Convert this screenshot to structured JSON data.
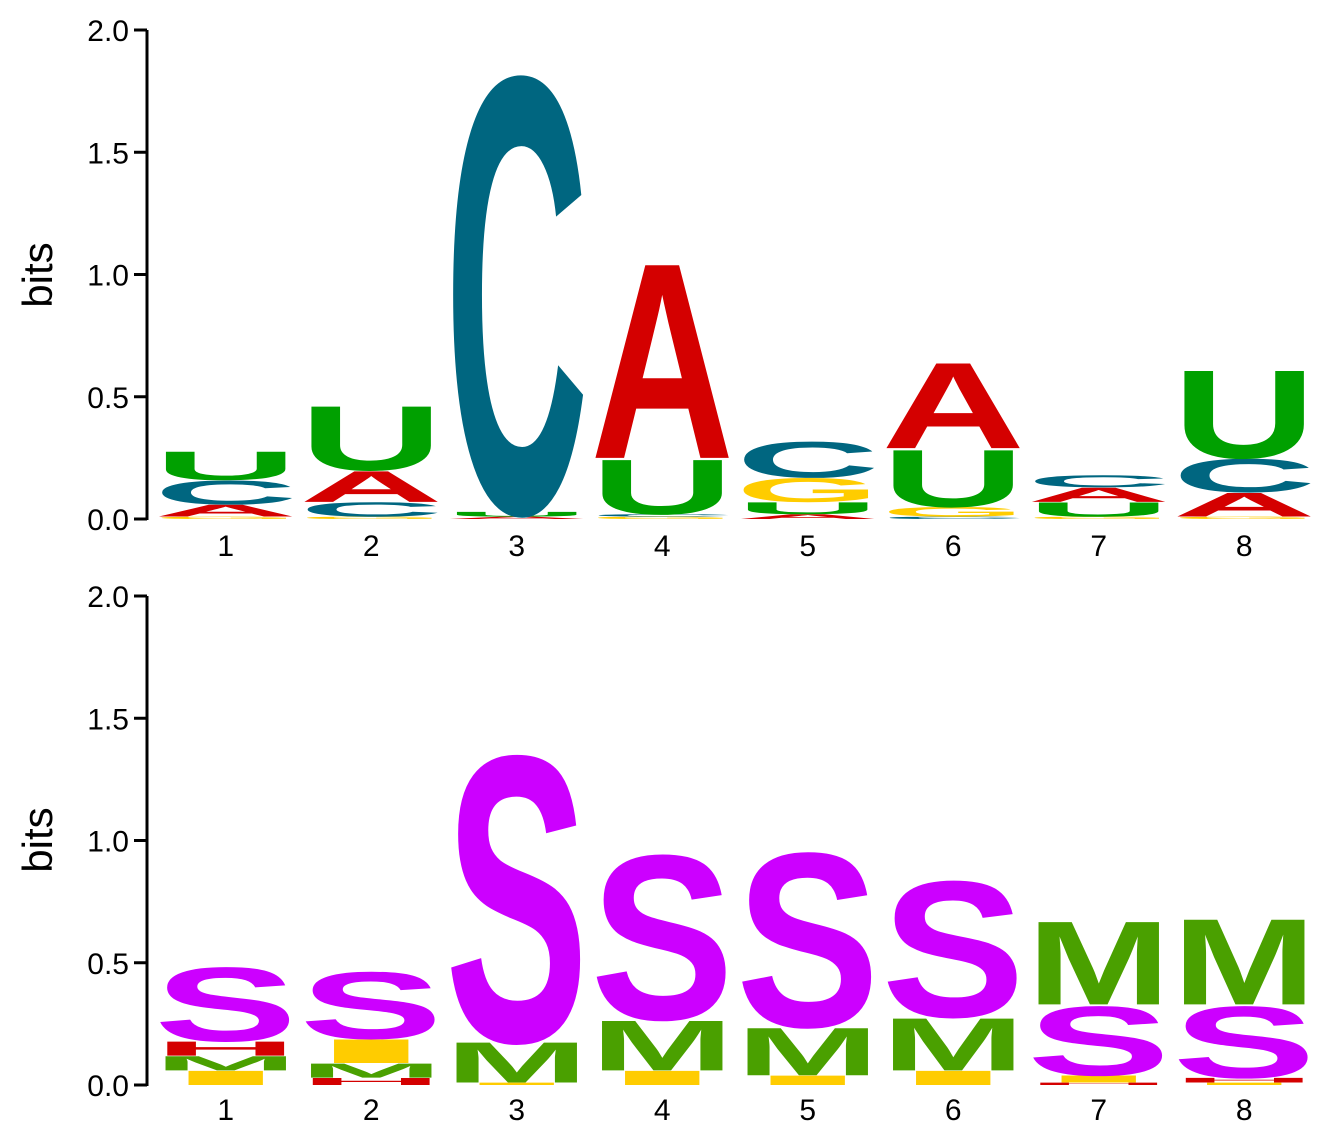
{
  "chart_data": [
    {
      "type": "sequence-logo",
      "ylabel": "bits",
      "ylim": [
        0,
        2.0
      ],
      "yticks": [
        "0.0",
        "0.5",
        "1.0",
        "1.5",
        "2.0"
      ],
      "xticks": [
        "1",
        "2",
        "3",
        "4",
        "5",
        "6",
        "7",
        "8"
      ],
      "colors": {
        "A": "#d40000",
        "C": "#006680",
        "G": "#ffcc00",
        "U": "#00a000"
      },
      "positions": [
        [
          {
            "letter": "G",
            "bits": 0.01
          },
          {
            "letter": "A",
            "bits": 0.05
          },
          {
            "letter": "C",
            "bits": 0.1
          },
          {
            "letter": "U",
            "bits": 0.12
          }
        ],
        [
          {
            "letter": "G",
            "bits": 0.01
          },
          {
            "letter": "C",
            "bits": 0.06
          },
          {
            "letter": "A",
            "bits": 0.13
          },
          {
            "letter": "U",
            "bits": 0.27
          }
        ],
        [
          {
            "letter": "A",
            "bits": 0.01
          },
          {
            "letter": "U",
            "bits": 0.02
          },
          {
            "letter": "C",
            "bits": 1.83
          }
        ],
        [
          {
            "letter": "G",
            "bits": 0.01
          },
          {
            "letter": "C",
            "bits": 0.01
          },
          {
            "letter": "U",
            "bits": 0.23
          },
          {
            "letter": "A",
            "bits": 0.82
          }
        ],
        [
          {
            "letter": "A",
            "bits": 0.02
          },
          {
            "letter": "U",
            "bits": 0.05
          },
          {
            "letter": "G",
            "bits": 0.1
          },
          {
            "letter": "C",
            "bits": 0.15
          }
        ],
        [
          {
            "letter": "C",
            "bits": 0.01
          },
          {
            "letter": "G",
            "bits": 0.04
          },
          {
            "letter": "U",
            "bits": 0.24
          },
          {
            "letter": "A",
            "bits": 0.36
          }
        ],
        [
          {
            "letter": "G",
            "bits": 0.01
          },
          {
            "letter": "U",
            "bits": 0.06
          },
          {
            "letter": "A",
            "bits": 0.06
          },
          {
            "letter": "C",
            "bits": 0.05
          }
        ],
        [
          {
            "letter": "G",
            "bits": 0.01
          },
          {
            "letter": "A",
            "bits": 0.1
          },
          {
            "letter": "C",
            "bits": 0.14
          },
          {
            "letter": "U",
            "bits": 0.37
          }
        ]
      ]
    },
    {
      "type": "sequence-logo",
      "ylabel": "bits",
      "ylim": [
        0,
        2.0
      ],
      "yticks": [
        "0.0",
        "0.5",
        "1.0",
        "1.5",
        "2.0"
      ],
      "xticks": [
        "1",
        "2",
        "3",
        "4",
        "5",
        "6",
        "7",
        "8"
      ],
      "colors": {
        "S": "#cc00ff",
        "M": "#4aa000",
        "H": "#d40000",
        "I": "#ffcc00"
      },
      "positions": [
        [
          {
            "letter": "I",
            "bits": 0.06
          },
          {
            "letter": "M",
            "bits": 0.06
          },
          {
            "letter": "H",
            "bits": 0.06
          },
          {
            "letter": "S",
            "bits": 0.31
          }
        ],
        [
          {
            "letter": "H",
            "bits": 0.03
          },
          {
            "letter": "M",
            "bits": 0.06
          },
          {
            "letter": "I",
            "bits": 0.1
          },
          {
            "letter": "S",
            "bits": 0.28
          }
        ],
        [
          {
            "letter": "I",
            "bits": 0.01
          },
          {
            "letter": "M",
            "bits": 0.17
          },
          {
            "letter": "S",
            "bits": 1.2
          }
        ],
        [
          {
            "letter": "I",
            "bits": 0.06
          },
          {
            "letter": "M",
            "bits": 0.21
          },
          {
            "letter": "S",
            "bits": 0.69
          }
        ],
        [
          {
            "letter": "I",
            "bits": 0.04
          },
          {
            "letter": "M",
            "bits": 0.2
          },
          {
            "letter": "S",
            "bits": 0.73
          }
        ],
        [
          {
            "letter": "I",
            "bits": 0.06
          },
          {
            "letter": "M",
            "bits": 0.22
          },
          {
            "letter": "S",
            "bits": 0.57
          }
        ],
        [
          {
            "letter": "H",
            "bits": 0.01
          },
          {
            "letter": "I",
            "bits": 0.03
          },
          {
            "letter": "S",
            "bits": 0.29
          },
          {
            "letter": "M",
            "bits": 0.35
          }
        ],
        [
          {
            "letter": "I",
            "bits": 0.01
          },
          {
            "letter": "H",
            "bits": 0.02
          },
          {
            "letter": "S",
            "bits": 0.3
          },
          {
            "letter": "M",
            "bits": 0.36
          }
        ]
      ]
    }
  ]
}
